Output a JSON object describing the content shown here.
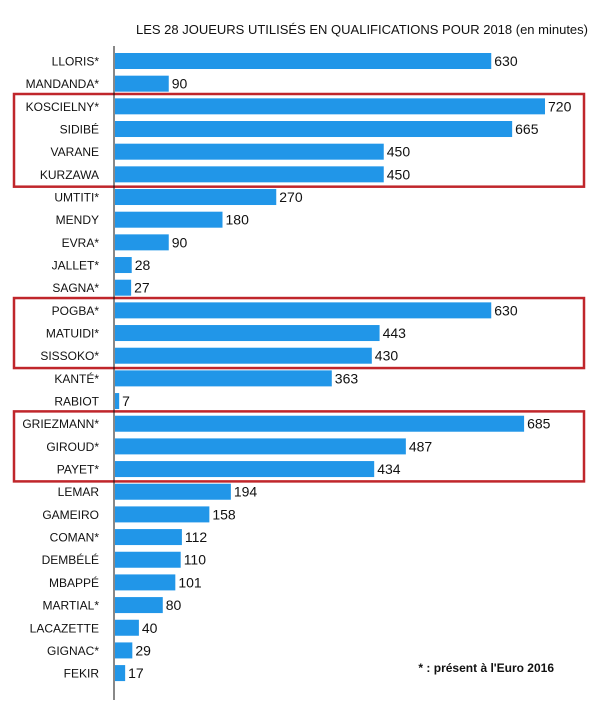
{
  "chart_data": {
    "type": "bar",
    "orientation": "horizontal",
    "title": "LES 28 JOUEURS UTILISÉS EN QUALIFICATIONS POUR 2018 (en minutes)",
    "categories": [
      "LLORIS*",
      "MANDANDA*",
      "KOSCIELNY*",
      "SIDIBÉ",
      "VARANE",
      "KURZAWA",
      "UMTITI*",
      "MENDY",
      "EVRA*",
      "JALLET*",
      "SAGNA*",
      "POGBA*",
      "MATUIDI*",
      "SISSOKO*",
      "KANTÉ*",
      "RABIOT",
      "GRIEZMANN*",
      "GIROUD*",
      "PAYET*",
      "LEMAR",
      "GAMEIRO",
      "COMAN*",
      "DEMBÉLÉ",
      "MBAPPÉ",
      "MARTIAL*",
      "LACAZETTE",
      "GIGNAC*",
      "FEKIR"
    ],
    "values": [
      630,
      90,
      720,
      665,
      450,
      450,
      270,
      180,
      90,
      28,
      27,
      630,
      443,
      430,
      363,
      7,
      685,
      487,
      434,
      194,
      158,
      112,
      110,
      101,
      80,
      40,
      29,
      17
    ],
    "xlim": [
      0,
      720
    ],
    "grid": false,
    "bar_color": "#2196e8",
    "highlight_color": "#c0262b",
    "highlight_groups": [
      [
        2,
        5
      ],
      [
        11,
        13
      ],
      [
        16,
        18
      ]
    ],
    "annotation": "* : présent à l'Euro 2016"
  }
}
